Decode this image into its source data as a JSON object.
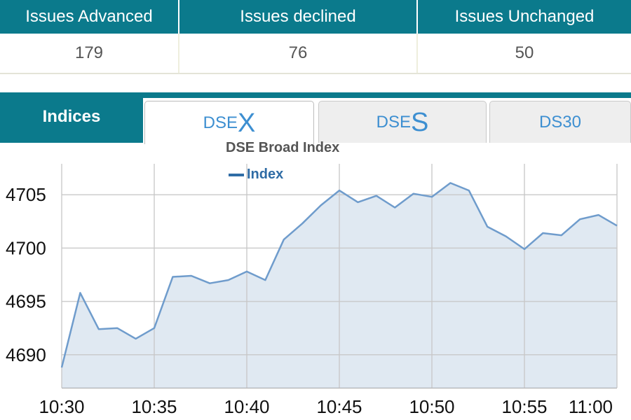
{
  "stats": {
    "headers": [
      "Issues Advanced",
      "Issues declined",
      "Issues Unchanged"
    ],
    "values": [
      "179",
      "76",
      "50"
    ]
  },
  "tabs": {
    "section_label": "Indices",
    "items": [
      {
        "prefix": "DSE",
        "suffix": "X",
        "active": true
      },
      {
        "prefix": "DSE",
        "suffix": "S",
        "active": false
      },
      {
        "prefix": "DS30",
        "suffix": "",
        "active": false
      }
    ]
  },
  "colors": {
    "accent": "#0b7a8c",
    "line": "#6f9ccc",
    "fill": "#dbe5f0",
    "legend": "#2f6ca5"
  },
  "chart_data": {
    "type": "area",
    "title": "DSE Broad Index",
    "legend": [
      "Index"
    ],
    "legend_position": "top",
    "grid": true,
    "xlim": [
      "10:30",
      "11:00"
    ],
    "ylim": [
      4686.9,
      4707.9
    ],
    "y_ticks": [
      4690,
      4695,
      4700,
      4705
    ],
    "x_ticks": [
      "10:30",
      "10:35",
      "10:40",
      "10:45",
      "10:50",
      "10:55",
      "11:00"
    ],
    "series": [
      {
        "name": "Index",
        "x": [
          "10:30",
          "10:31",
          "10:32",
          "10:33",
          "10:34",
          "10:35",
          "10:36",
          "10:37",
          "10:38",
          "10:39",
          "10:40",
          "10:41",
          "10:42",
          "10:43",
          "10:44",
          "10:45",
          "10:46",
          "10:47",
          "10:48",
          "10:49",
          "10:50",
          "10:51",
          "10:52",
          "10:53",
          "10:54",
          "10:55",
          "10:56",
          "10:57",
          "10:58",
          "10:59",
          "11:00"
        ],
        "values": [
          4688.8,
          4695.8,
          4692.4,
          4692.5,
          4691.5,
          4692.5,
          4697.3,
          4697.4,
          4696.7,
          4697.0,
          4697.8,
          4697.0,
          4700.8,
          4702.3,
          4704.0,
          4705.4,
          4704.3,
          4704.9,
          4703.8,
          4705.1,
          4704.8,
          4706.1,
          4705.4,
          4702.0,
          4701.1,
          4699.9,
          4701.4,
          4701.2,
          4702.7,
          4703.1,
          4702.1
        ]
      }
    ]
  }
}
